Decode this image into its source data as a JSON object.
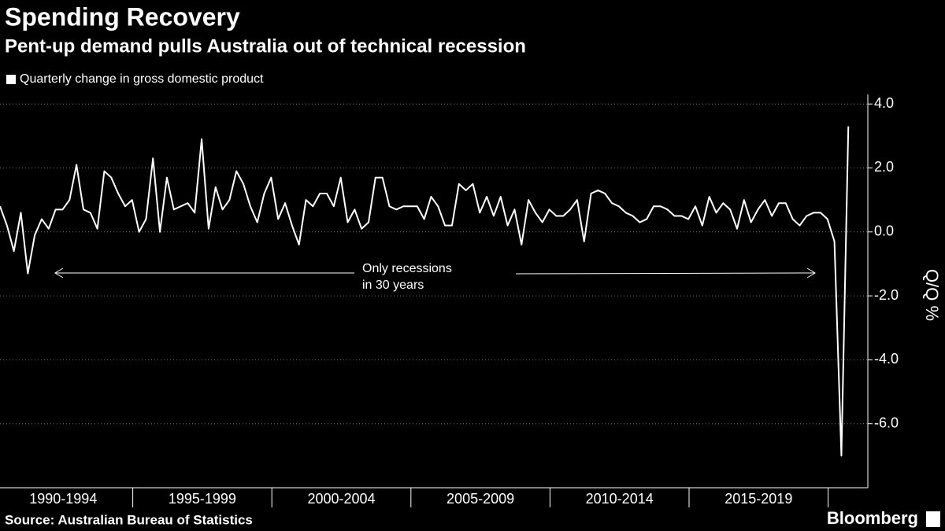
{
  "chart_data": {
    "type": "line",
    "title": "Spending Recovery",
    "subtitle": "Pent-up demand pulls Australia out of technical recession",
    "y_label": "Q/Q %",
    "source": "Source: Australian Bureau of Statistics",
    "brand": "Bloomberg",
    "annotation": [
      "Only recessions",
      "in 30 years"
    ],
    "periods": [
      "1990-1994",
      "1995-1999",
      "2000-2004",
      "2005-2009",
      "2010-2014",
      "2015-2019"
    ],
    "series": [
      {
        "name": "Quarterly change in gross domestic product",
        "color": "#ffffff",
        "values": [
          0.8,
          0.2,
          -0.6,
          0.6,
          -1.3,
          -0.1,
          0.4,
          0.1,
          0.7,
          0.7,
          1.0,
          2.1,
          0.7,
          0.6,
          0.1,
          1.9,
          1.7,
          1.2,
          0.8,
          1.0,
          0.0,
          0.4,
          2.3,
          0.0,
          1.7,
          0.7,
          0.8,
          0.9,
          0.6,
          2.9,
          0.1,
          1.4,
          0.7,
          1.0,
          1.9,
          1.5,
          0.8,
          0.3,
          1.2,
          1.7,
          0.4,
          0.9,
          0.2,
          -0.4,
          1.0,
          0.8,
          1.2,
          1.2,
          0.8,
          1.7,
          0.3,
          0.7,
          0.1,
          0.3,
          1.7,
          1.7,
          0.8,
          0.7,
          0.8,
          0.8,
          0.8,
          0.4,
          1.1,
          0.8,
          0.2,
          0.2,
          1.5,
          1.3,
          1.5,
          0.6,
          1.1,
          0.5,
          1.1,
          0.2,
          0.7,
          -0.4,
          1.0,
          0.6,
          0.3,
          0.7,
          0.5,
          0.5,
          0.7,
          1.0,
          -0.3,
          1.2,
          1.3,
          1.2,
          0.9,
          0.8,
          0.6,
          0.5,
          0.3,
          0.4,
          0.8,
          0.8,
          0.7,
          0.5,
          0.5,
          0.4,
          0.8,
          0.2,
          1.1,
          0.6,
          0.9,
          0.7,
          0.1,
          1.0,
          0.3,
          0.7,
          1.0,
          0.5,
          0.9,
          0.9,
          0.4,
          0.2,
          0.5,
          0.6,
          0.6,
          0.4,
          -0.3,
          -7.0,
          3.3
        ]
      }
    ],
    "ylim": [
      -8,
      4.3
    ],
    "yticks": [
      {
        "value": 4,
        "label": "4.0"
      },
      {
        "value": 2,
        "label": "2.0"
      },
      {
        "value": 0,
        "label": "0.0"
      },
      {
        "value": -2,
        "label": "-2.0"
      },
      {
        "value": -4,
        "label": "-4.0"
      },
      {
        "value": -6,
        "label": "-6.0"
      }
    ],
    "grid": true
  }
}
